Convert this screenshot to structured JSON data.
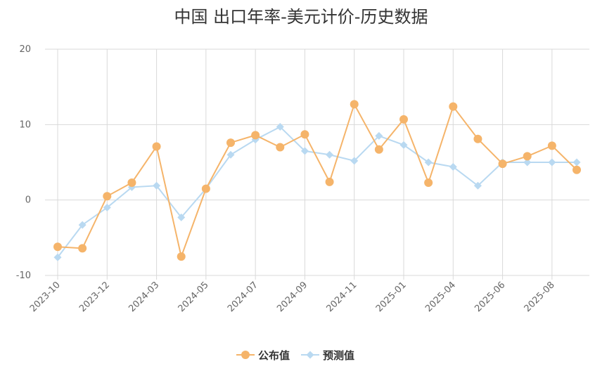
{
  "chart_data": {
    "type": "line",
    "title": "中国 出口年率-美元计价-历史数据",
    "xlabel": "",
    "ylabel": "",
    "ylim": [
      -10,
      20
    ],
    "y_ticks": [
      "20",
      "10",
      "0",
      "-10"
    ],
    "grid": true,
    "legend_position": "bottom-center",
    "x": [
      "2023-10",
      "2023-11",
      "2023-12",
      "2024-01",
      "2024-03",
      "2024-04",
      "2024-05",
      "2024-06",
      "2024-07",
      "2024-08",
      "2024-09",
      "2024-10",
      "2024-11",
      "2024-12",
      "2025-01",
      "2025-03",
      "2025-04",
      "2025-05",
      "2025-06",
      "2025-07",
      "2025-08",
      "2025-09"
    ],
    "x_tick_labels": [
      "2023-10",
      "2023-12",
      "2024-03",
      "2024-05",
      "2024-07",
      "2024-09",
      "2024-11",
      "2025-01",
      "2025-04",
      "2025-06",
      "2025-08"
    ],
    "series": [
      {
        "name": "公布值",
        "color": "#f5b46a",
        "marker": "circle",
        "values": [
          -6.2,
          -6.4,
          0.5,
          2.3,
          7.1,
          -7.5,
          1.5,
          7.6,
          8.6,
          7.0,
          8.7,
          2.4,
          12.7,
          6.7,
          10.7,
          2.3,
          12.4,
          8.1,
          4.8,
          5.8,
          7.2,
          4.0
        ]
      },
      {
        "name": "预测值",
        "color": "#b9d9f1",
        "marker": "diamond",
        "values": [
          -7.6,
          -3.3,
          -1.0,
          1.7,
          1.9,
          -2.3,
          1.5,
          6.0,
          8.0,
          9.7,
          6.5,
          6.0,
          5.2,
          8.5,
          7.3,
          5.0,
          4.4,
          1.9,
          5.0,
          5.0,
          5.0,
          5.0
        ]
      }
    ]
  }
}
